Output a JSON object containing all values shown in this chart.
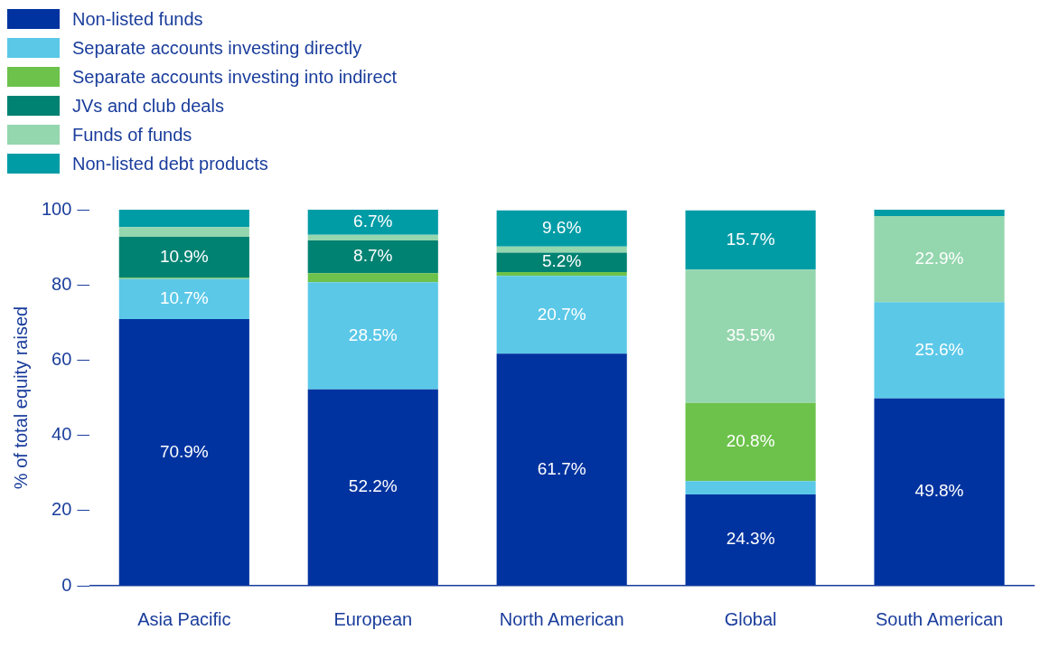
{
  "chart_data": {
    "type": "bar",
    "stacked": true,
    "ylabel": "% of total equity raised",
    "categories": [
      "Asia Pacific",
      "European",
      "North American",
      "Global",
      "South American"
    ],
    "series": [
      {
        "name": "Non-listed funds",
        "color": "#0033a0",
        "values": [
          70.9,
          52.2,
          61.7,
          24.3,
          49.8
        ],
        "value_labels": [
          "70.9%",
          "52.2%",
          "61.7%",
          "24.3%",
          "49.8%"
        ]
      },
      {
        "name": "Separate accounts investing directly",
        "color": "#5bc8e8",
        "values": [
          10.7,
          28.5,
          20.7,
          3.5,
          25.6
        ],
        "value_labels": [
          "10.7%",
          "28.5%",
          "20.7%",
          null,
          "25.6%"
        ]
      },
      {
        "name": "Separate accounts investing into indirect",
        "color": "#6cc24a",
        "values": [
          0.3,
          2.4,
          1.0,
          20.8,
          0
        ],
        "value_labels": [
          null,
          null,
          null,
          "20.8%",
          null
        ]
      },
      {
        "name": "JVs and club deals",
        "color": "#008272",
        "values": [
          10.9,
          8.7,
          5.2,
          0,
          0
        ],
        "value_labels": [
          "10.9%",
          "8.7%",
          "5.2%",
          null,
          null
        ]
      },
      {
        "name": "Funds of funds",
        "color": "#94d6ae",
        "values": [
          2.6,
          1.5,
          1.6,
          35.5,
          22.9
        ],
        "value_labels": [
          null,
          null,
          null,
          "35.5%",
          "22.9%"
        ]
      },
      {
        "name": "Non-listed debt products",
        "color": "#009ca6",
        "values": [
          4.6,
          6.7,
          9.6,
          15.7,
          1.7
        ],
        "value_labels": [
          null,
          "6.7%",
          "9.6%",
          "15.7%",
          null
        ]
      }
    ],
    "ylim": [
      0,
      100
    ],
    "yticks": [
      0,
      20,
      40,
      60,
      80,
      100
    ],
    "grid": false,
    "legend": "top left"
  }
}
